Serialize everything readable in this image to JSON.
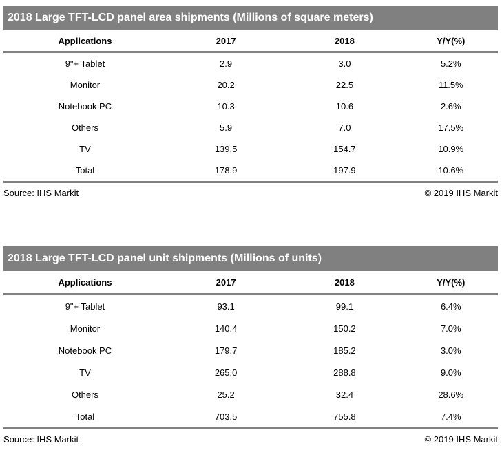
{
  "colors": {
    "banner_background": "#808080",
    "banner_text": "#ffffff",
    "rule": "#808080",
    "body_text": "#000000",
    "page_background": "#ffffff"
  },
  "chart_data": [
    {
      "type": "table",
      "title": "2018 Large TFT-LCD panel area shipments (Millions of square meters)",
      "columns": [
        "Applications",
        "2017",
        "2018",
        "Y/Y(%)"
      ],
      "rows": [
        [
          "9\"+ Tablet",
          "2.9",
          "3.0",
          "5.2%"
        ],
        [
          "Monitor",
          "20.2",
          "22.5",
          "11.5%"
        ],
        [
          "Notebook PC",
          "10.3",
          "10.6",
          "2.6%"
        ],
        [
          "Others",
          "5.9",
          "7.0",
          "17.5%"
        ],
        [
          "TV",
          "139.5",
          "154.7",
          "10.9%"
        ],
        [
          "Total",
          "178.9",
          "197.9",
          "10.6%"
        ]
      ],
      "source": "Source: IHS Markit",
      "copyright": "© 2019 IHS Markit"
    },
    {
      "type": "table",
      "title": "2018 Large TFT-LCD panel unit shipments (Millions of units)",
      "columns": [
        "Applications",
        "2017",
        "2018",
        "Y/Y(%)"
      ],
      "rows": [
        [
          "9\"+ Tablet",
          "93.1",
          "99.1",
          "6.4%"
        ],
        [
          "Monitor",
          "140.4",
          "150.2",
          "7.0%"
        ],
        [
          "Notebook PC",
          "179.7",
          "185.2",
          "3.0%"
        ],
        [
          "TV",
          "265.0",
          "288.8",
          "9.0%"
        ],
        [
          "Others",
          "25.2",
          "32.4",
          "28.6%"
        ],
        [
          "Total",
          "703.5",
          "755.8",
          "7.4%"
        ]
      ],
      "source": "Source: IHS Markit",
      "copyright": "© 2019 IHS Markit"
    }
  ]
}
